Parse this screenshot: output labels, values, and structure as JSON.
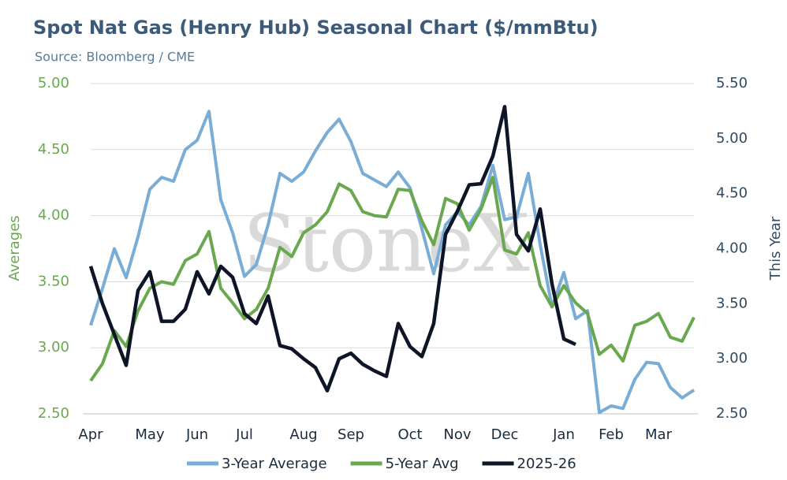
{
  "chart_data": {
    "type": "line",
    "title": "Spot Nat Gas (Henry Hub) Seasonal Chart ($/mmBtu)",
    "subtitle": "Source: Bloomberg / CME",
    "watermark": "StoneX",
    "y_label": "Averages",
    "y2_label": "This Year",
    "categories": [
      "Apr",
      null,
      null,
      null,
      null,
      "May",
      null,
      null,
      null,
      "Jun",
      null,
      null,
      null,
      "Jul",
      null,
      null,
      null,
      null,
      "Aug",
      null,
      null,
      null,
      "Sep",
      null,
      null,
      null,
      null,
      "Oct",
      null,
      null,
      null,
      "Nov",
      null,
      null,
      null,
      "Dec",
      null,
      null,
      null,
      null,
      "Jan",
      null,
      null,
      null,
      "Feb",
      null,
      null,
      null,
      "Mar",
      null,
      null,
      null
    ],
    "ylim": [
      2.5,
      5.0
    ],
    "yticks": [
      {
        "value": 2.5,
        "label": "2.50"
      },
      {
        "value": 3.0,
        "label": "3.00"
      },
      {
        "value": 3.5,
        "label": "3.50"
      },
      {
        "value": 4.0,
        "label": "4.00"
      },
      {
        "value": 4.5,
        "label": "4.50"
      },
      {
        "value": 5.0,
        "label": "5.00"
      }
    ],
    "y2lim": [
      2.5,
      5.5
    ],
    "y2ticks": [
      {
        "value": 2.5,
        "label": "2.50"
      },
      {
        "value": 3.0,
        "label": "3.00"
      },
      {
        "value": 3.5,
        "label": "3.50"
      },
      {
        "value": 4.0,
        "label": "4.00"
      },
      {
        "value": 4.5,
        "label": "4.50"
      },
      {
        "value": 5.0,
        "label": "5.00"
      },
      {
        "value": 5.5,
        "label": "5.50"
      }
    ],
    "y_color": "#6aa84f",
    "y2_color": "#2f4a63",
    "series": [
      {
        "name": "3-Year Average",
        "color": "#7aadd6",
        "values": [
          3.17,
          3.45,
          3.75,
          3.53,
          3.84,
          4.2,
          4.29,
          4.26,
          4.5,
          4.57,
          4.79,
          4.12,
          3.87,
          3.54,
          3.63,
          3.93,
          4.32,
          4.26,
          4.33,
          4.49,
          4.63,
          4.73,
          4.56,
          4.32,
          4.27,
          4.22,
          4.33,
          4.21,
          3.9,
          3.56,
          3.93,
          4.03,
          3.93,
          4.07,
          4.38,
          3.97,
          3.99,
          4.32,
          3.78,
          3.31,
          3.57,
          3.22,
          3.28,
          2.51,
          2.56,
          2.54,
          2.76,
          2.89,
          2.88,
          2.7,
          2.62,
          2.68
        ]
      },
      {
        "name": "5-Year Avg",
        "color": "#6aa84f",
        "values": [
          2.75,
          2.88,
          3.13,
          3.01,
          3.28,
          3.45,
          3.5,
          3.48,
          3.66,
          3.71,
          3.88,
          3.45,
          3.34,
          3.22,
          3.29,
          3.45,
          3.76,
          3.69,
          3.87,
          3.93,
          4.03,
          4.24,
          4.19,
          4.03,
          4.0,
          3.99,
          4.2,
          4.19,
          3.96,
          3.78,
          4.13,
          4.09,
          3.89,
          4.05,
          4.29,
          3.74,
          3.71,
          3.87,
          3.47,
          3.31,
          3.47,
          3.34,
          3.26,
          2.95,
          3.02,
          2.9,
          3.17,
          3.2,
          3.26,
          3.08,
          3.05,
          3.23
        ]
      },
      {
        "name": "2025-26",
        "color": "#0d1526",
        "axis": "y2",
        "values": [
          3.84,
          3.5,
          3.22,
          2.94,
          3.62,
          3.79,
          3.34,
          3.34,
          3.45,
          3.79,
          3.59,
          3.84,
          3.74,
          3.41,
          3.32,
          3.57,
          3.12,
          3.09,
          3.0,
          2.92,
          2.71,
          3.0,
          3.05,
          2.95,
          2.89,
          2.84,
          3.32,
          3.11,
          3.02,
          3.32,
          4.13,
          4.34,
          4.58,
          4.59,
          4.84,
          5.29,
          4.13,
          3.98,
          4.36,
          3.68,
          3.18,
          3.13,
          null,
          null,
          null,
          null,
          null,
          null,
          null,
          null,
          null,
          null
        ]
      }
    ]
  }
}
